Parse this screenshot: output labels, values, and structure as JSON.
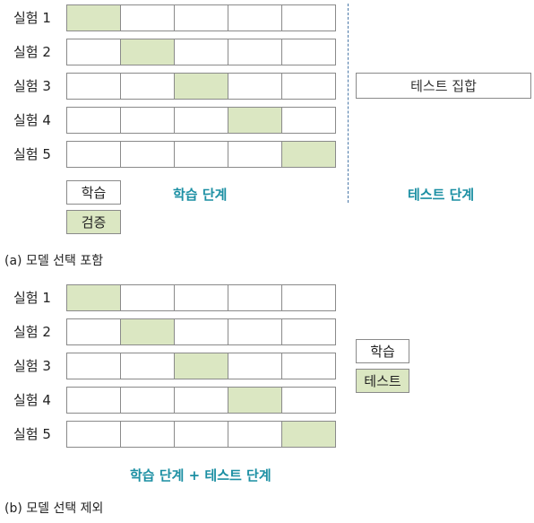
{
  "colors": {
    "train_fill": "#ffffff",
    "validation_fill": "#dbe7c2",
    "accent_text": "#1b8fa3",
    "divider": "#4a78a8"
  },
  "diagram_a": {
    "trials": [
      {
        "label": "실험 1",
        "highlight_index": 0
      },
      {
        "label": "실험 2",
        "highlight_index": 1
      },
      {
        "label": "실험 3",
        "highlight_index": 2
      },
      {
        "label": "실험 4",
        "highlight_index": 3
      },
      {
        "label": "실험 5",
        "highlight_index": 4
      }
    ],
    "test_set_label": "테스트 집합",
    "legend": {
      "train": "학습",
      "validation": "검증"
    },
    "phase_train": "학습 단계",
    "phase_test": "테스트 단계",
    "caption": "(a) 모델 선택 포함"
  },
  "diagram_b": {
    "trials": [
      {
        "label": "실험 1",
        "highlight_index": 0
      },
      {
        "label": "실험 2",
        "highlight_index": 1
      },
      {
        "label": "실험 3",
        "highlight_index": 2
      },
      {
        "label": "실험 4",
        "highlight_index": 3
      },
      {
        "label": "실험 5",
        "highlight_index": 4
      }
    ],
    "legend": {
      "train": "학습",
      "test": "테스트"
    },
    "phase_combined": "학습 단계 + 테스트 단계",
    "caption": "(b) 모델 선택 제외"
  }
}
